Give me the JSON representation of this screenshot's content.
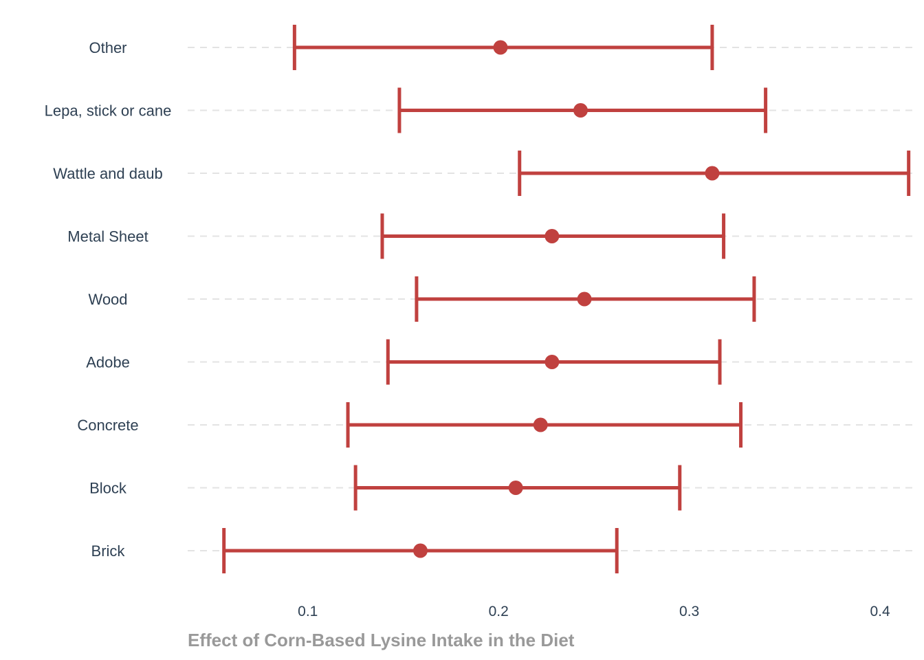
{
  "chart_data": {
    "type": "errorbar",
    "orientation": "horizontal",
    "xlabel": "Effect of Corn-Based Lysine Intake in the Diet",
    "ylabel": "",
    "xlim": [
      0.037,
      0.418
    ],
    "xticks": [
      "0.1",
      "0.2",
      "0.3",
      "0.4"
    ],
    "xtick_values": [
      0.1,
      0.2,
      0.3,
      0.4
    ],
    "grid": "horizontal dashed",
    "color": "#c0413f",
    "grid_color": "#e3e3e3",
    "text_color": "#2e4053",
    "title_color": "#999999",
    "categories": [
      "Other",
      "Lepa, stick or cane",
      "Wattle and daub",
      "Metal Sheet",
      "Wood",
      "Adobe",
      "Concrete",
      "Block",
      "Brick"
    ],
    "estimates": [
      0.201,
      0.243,
      0.312,
      0.228,
      0.245,
      0.228,
      0.222,
      0.209,
      0.159
    ],
    "lower": [
      0.093,
      0.148,
      0.211,
      0.139,
      0.157,
      0.142,
      0.121,
      0.125,
      0.056
    ],
    "upper": [
      0.312,
      0.34,
      0.415,
      0.318,
      0.334,
      0.316,
      0.327,
      0.295,
      0.262
    ]
  }
}
